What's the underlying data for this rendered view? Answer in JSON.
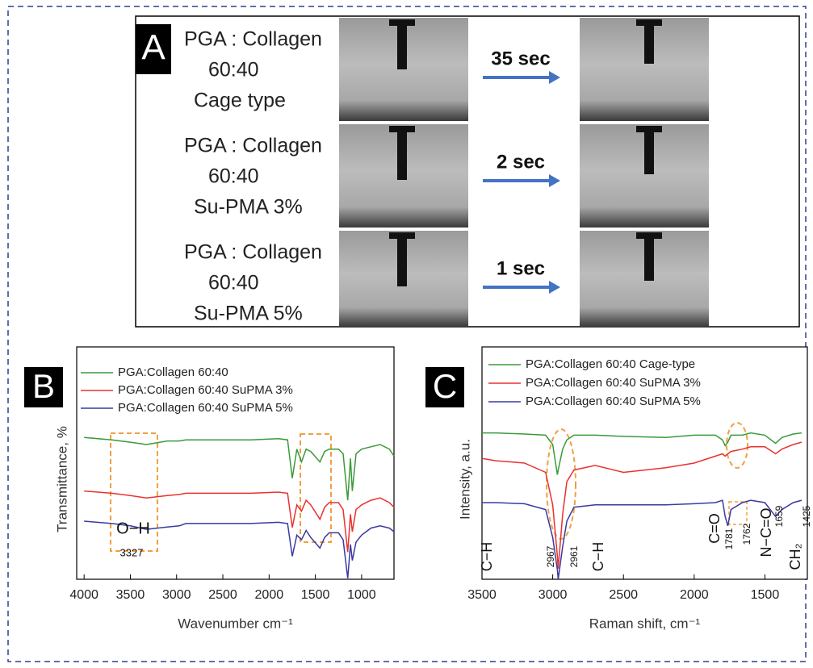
{
  "panel_a": {
    "label": "A",
    "rows": [
      {
        "lines": [
          "PGA : Collagen",
          "60:40",
          "Cage type"
        ],
        "time": "35 sec"
      },
      {
        "lines": [
          "PGA : Collagen",
          "60:40",
          "Su-PMA 3%"
        ],
        "time": "2 sec"
      },
      {
        "lines": [
          "PGA : Collagen",
          "60:40",
          "Su-PMA 5%"
        ],
        "time": "1 sec"
      }
    ]
  },
  "chart_data": [
    {
      "type": "line",
      "panel_label": "B",
      "x_label": "Wavenumber cm⁻¹",
      "y_label": "Transmittance, %",
      "xlim": [
        4080,
        650
      ],
      "ylim": [
        0,
        10
      ],
      "xticks": [
        4000,
        3500,
        3000,
        2500,
        2000,
        1500,
        1000
      ],
      "x": [
        4000,
        3700,
        3500,
        3327,
        3100,
        2970,
        2900,
        2600,
        2200,
        1900,
        1800,
        1750,
        1700,
        1650,
        1600,
        1550,
        1450,
        1400,
        1350,
        1250,
        1200,
        1150,
        1120,
        1100,
        1060,
        1000,
        900,
        800,
        700,
        650
      ],
      "series": [
        {
          "name": "PGA:Collagen 60:40",
          "color": "#3a9a3a",
          "values": [
            6.1,
            6.0,
            5.9,
            5.8,
            5.95,
            5.95,
            6.0,
            6.0,
            6.0,
            6.05,
            6.0,
            4.35,
            5.6,
            5.05,
            5.6,
            5.5,
            5.05,
            5.5,
            5.6,
            5.6,
            5.4,
            3.4,
            5.2,
            3.8,
            5.4,
            5.6,
            5.7,
            5.8,
            5.6,
            5.3
          ]
        },
        {
          "name": "PGA:Collagen 60:40 SuPMA 3%",
          "color": "#e8322f",
          "values": [
            3.8,
            3.7,
            3.6,
            3.5,
            3.6,
            3.65,
            3.7,
            3.7,
            3.7,
            3.75,
            3.7,
            2.23,
            3.2,
            2.93,
            3.4,
            3.2,
            2.58,
            3.1,
            3.3,
            3.3,
            3.0,
            1.17,
            2.8,
            2.05,
            3.0,
            3.2,
            3.4,
            3.5,
            3.3,
            3.1
          ]
        },
        {
          "name": "PGA:Collagen 60:40 SuPMA 5%",
          "color": "#3a3aa0",
          "values": [
            2.5,
            2.4,
            2.3,
            2.15,
            2.25,
            2.3,
            2.4,
            2.4,
            2.4,
            2.45,
            2.4,
            0.99,
            1.9,
            1.7,
            2.1,
            1.8,
            1.34,
            1.8,
            2.0,
            2.0,
            1.7,
            0.04,
            1.5,
            0.81,
            1.6,
            1.9,
            2.2,
            2.3,
            2.2,
            2.05
          ]
        }
      ],
      "annotations": [
        "O−H",
        "3327"
      ]
    },
    {
      "type": "line",
      "panel_label": "C",
      "x_label": "Raman shift, cm⁻¹",
      "y_label": "Intensity, a.u.",
      "xlim": [
        3500,
        1200
      ],
      "ylim": [
        0,
        10
      ],
      "xticks": [
        3500,
        3000,
        2500,
        2000,
        1500
      ],
      "x": [
        3500,
        3400,
        3200,
        3050,
        3000,
        2967,
        2961,
        2930,
        2900,
        2850,
        2700,
        2500,
        2200,
        2000,
        1850,
        1800,
        1781,
        1762,
        1740,
        1659,
        1600,
        1500,
        1425,
        1380,
        1300,
        1240
      ],
      "series": [
        {
          "name": "PGA:Collagen 60:40 Cage-type",
          "color": "#3a9a3a",
          "values": [
            6.3,
            6.3,
            6.25,
            6.2,
            5.8,
            4.5,
            4.7,
            5.6,
            6.0,
            6.2,
            6.2,
            6.15,
            6.1,
            6.2,
            6.2,
            6.0,
            5.75,
            5.9,
            6.2,
            6.2,
            6.3,
            6.2,
            5.85,
            6.1,
            6.25,
            6.3
          ]
        },
        {
          "name": "PGA:Collagen 60:40 SuPMA 3%",
          "color": "#e8322f",
          "values": [
            5.2,
            5.1,
            5.0,
            4.6,
            3.2,
            1.0,
            0.46,
            2.8,
            4.2,
            4.7,
            4.9,
            4.6,
            4.8,
            5.0,
            5.3,
            5.4,
            5.3,
            5.4,
            5.5,
            5.6,
            5.7,
            5.7,
            5.4,
            5.6,
            5.8,
            5.9
          ]
        },
        {
          "name": "PGA:Collagen 60:40 SuPMA 5%",
          "color": "#3a3aa0",
          "values": [
            3.3,
            3.3,
            3.25,
            3.0,
            1.8,
            0.4,
            0.0,
            1.4,
            2.5,
            3.1,
            3.2,
            3.2,
            3.2,
            3.25,
            3.3,
            3.4,
            2.7,
            2.3,
            3.0,
            3.3,
            3.4,
            3.3,
            2.7,
            3.0,
            3.3,
            3.4
          ]
        }
      ],
      "annotations": [
        "C−H",
        "2967",
        "2961",
        "C−H",
        "C=O",
        "1781",
        "1762",
        "N−C=O",
        "1659",
        "CH₂",
        "1425"
      ]
    }
  ]
}
